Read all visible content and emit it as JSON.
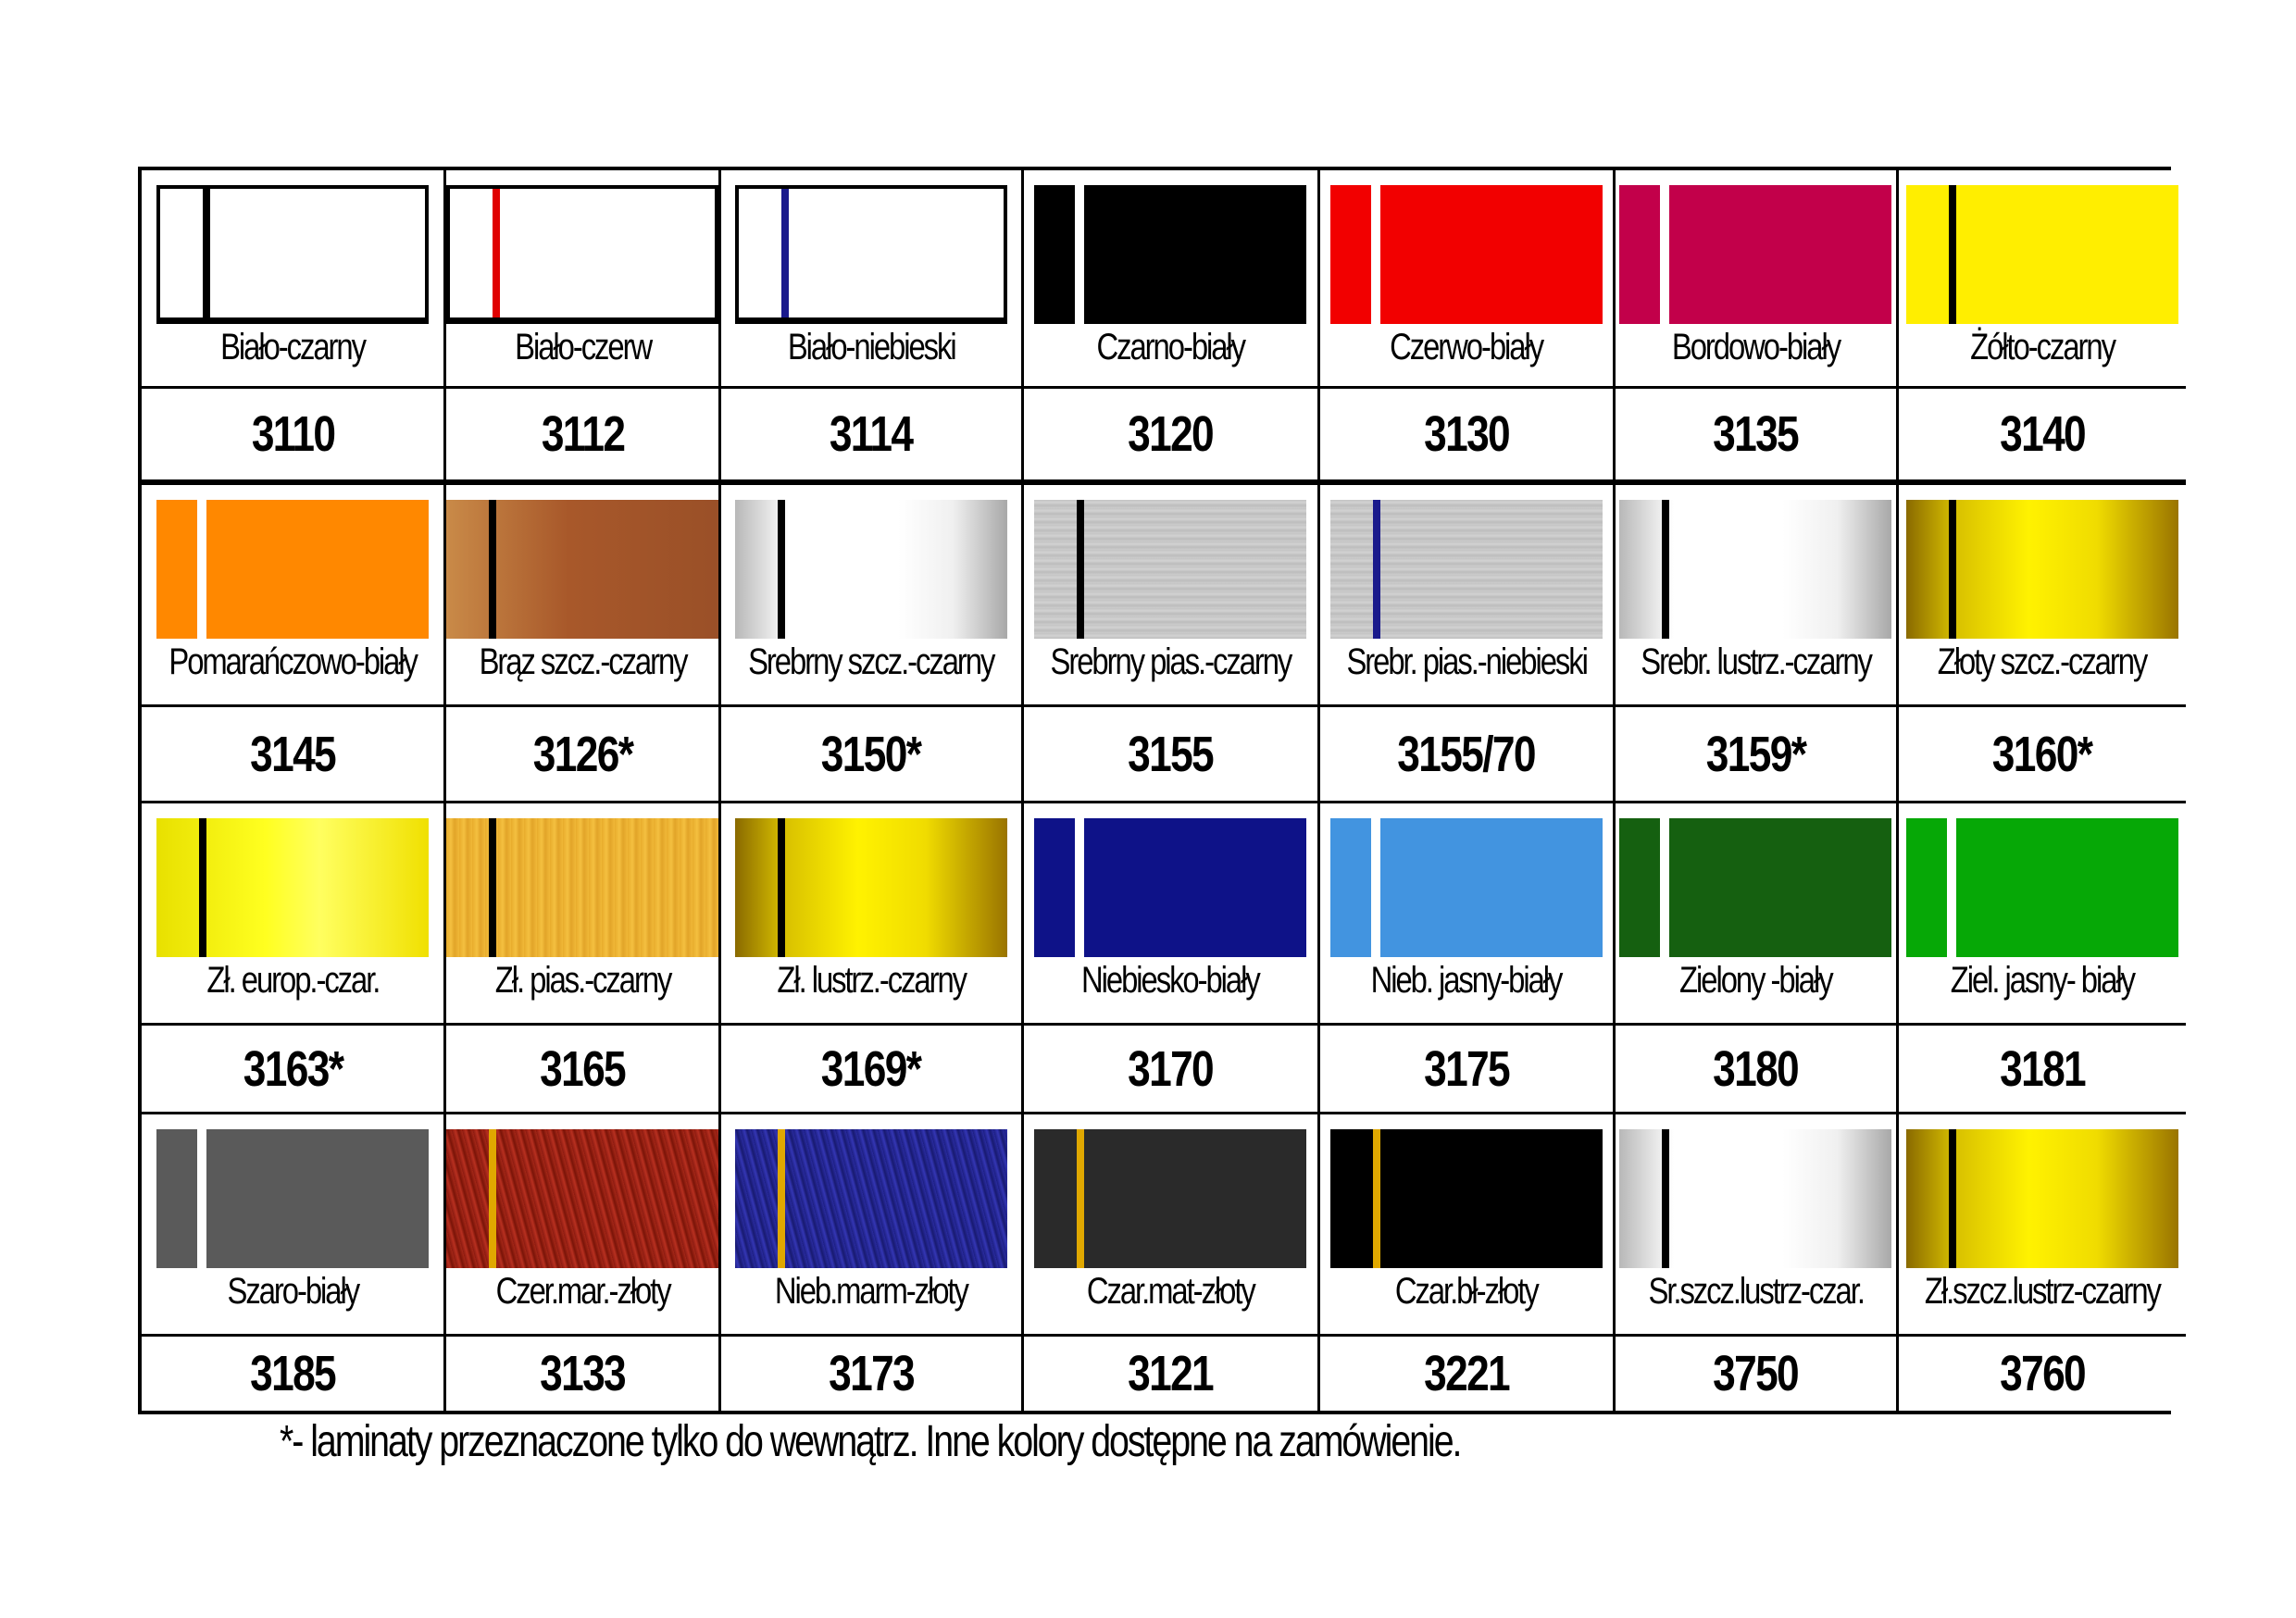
{
  "rows": [
    [
      {
        "label": "Biało-czarny",
        "code": "3110",
        "base": "#ffffff",
        "stripe": "#000000",
        "finish": "outline"
      },
      {
        "label": "Biało-czerw",
        "code": "3112",
        "base": "#ffffff",
        "stripe": "#e00000",
        "finish": "outline"
      },
      {
        "label": "Biało-niebieski",
        "code": "3114",
        "base": "#ffffff",
        "stripe": "#1a1a8c",
        "finish": "outline"
      },
      {
        "label": "Czarno-biały",
        "code": "3120",
        "base": "#000000",
        "stripe": "#ffffff",
        "finish": "solid"
      },
      {
        "label": "Czerwo-biały",
        "code": "3130",
        "base": "#f20000",
        "stripe": "#ffffff",
        "finish": "solid"
      },
      {
        "label": "Bordowo-biały",
        "code": "3135",
        "base": "#c2004a",
        "stripe": "#ffffff",
        "finish": "solid"
      },
      {
        "label": "Żółto-czarny",
        "code": "3140",
        "base": "#ffee00",
        "stripe": "#000000",
        "finish": "solid"
      }
    ],
    [
      {
        "label": "Pomarańczowo-biały",
        "code": "3145",
        "base": "#ff8800",
        "stripe": "#ffffff",
        "finish": "solid"
      },
      {
        "label": "Brąz szcz.-czarny",
        "code": "3126*",
        "base": "#a8582a",
        "stripe": "#000000",
        "finish": "bronze"
      },
      {
        "label": "Srebrny szcz.-czarny",
        "code": "3150*",
        "base": "#e8e8e8",
        "stripe": "#000000",
        "finish": "silver-mirror"
      },
      {
        "label": "Srebrny pias.-czarny",
        "code": "3155",
        "base": "#c8c8c8",
        "stripe": "#000000",
        "finish": "silver-brushed"
      },
      {
        "label": "Srebr. pias.-niebieski",
        "code": "3155/70",
        "base": "#c8c8c8",
        "stripe": "#1a1a8c",
        "finish": "silver-brushed"
      },
      {
        "label": "Srebr. lustrz.-czarny",
        "code": "3159*",
        "base": "#e8e8e8",
        "stripe": "#000000",
        "finish": "silver-mirror"
      },
      {
        "label": "Złoty szcz.-czarny",
        "code": "3160*",
        "base": "#d6b800",
        "stripe": "#000000",
        "finish": "gold-mirror"
      }
    ],
    [
      {
        "label": "Zł. europ.-czar.",
        "code": "3163*",
        "base": "#f4ec00",
        "stripe": "#000000",
        "finish": "gold-euro"
      },
      {
        "label": "Zł. pias.-czarny",
        "code": "3165",
        "base": "#eab030",
        "stripe": "#000000",
        "finish": "gold-brushed"
      },
      {
        "label": "Zł. lustrz.-czarny",
        "code": "3169*",
        "base": "#d6b800",
        "stripe": "#000000",
        "finish": "gold-mirror"
      },
      {
        "label": "Niebiesko-biały",
        "code": "3170",
        "base": "#0e1288",
        "stripe": "#ffffff",
        "finish": "solid"
      },
      {
        "label": "Nieb. jasny-biały",
        "code": "3175",
        "base": "#4294e0",
        "stripe": "#ffffff",
        "finish": "solid"
      },
      {
        "label": "Zielony -biały",
        "code": "3180",
        "base": "#156010",
        "stripe": "#ffffff",
        "finish": "solid"
      },
      {
        "label": "Ziel. jasny- biały",
        "code": "3181",
        "base": "#06a806",
        "stripe": "#ffffff",
        "finish": "solid"
      }
    ],
    [
      {
        "label": "Szaro-biały",
        "code": "3185",
        "base": "#5a5a5a",
        "stripe": "#ffffff",
        "finish": "solid"
      },
      {
        "label": "Czer.mar.-złoty",
        "code": "3133",
        "base": "#a02818",
        "stripe": "#e0a800",
        "finish": "marble-red"
      },
      {
        "label": "Nieb.marm-złoty",
        "code": "3173",
        "base": "#2a2ca0",
        "stripe": "#e0a800",
        "finish": "marble-blue"
      },
      {
        "label": "Czar.mat-złoty",
        "code": "3121",
        "base": "#2a2a2a",
        "stripe": "#e0a800",
        "finish": "solid"
      },
      {
        "label": "Czar.bł-złoty",
        "code": "3221",
        "base": "#000000",
        "stripe": "#e0a800",
        "finish": "solid"
      },
      {
        "label": "Sr.szcz.lustrz-czar.",
        "code": "3750",
        "base": "#e8e8e8",
        "stripe": "#000000",
        "finish": "silver-mirror"
      },
      {
        "label": "Zł.szcz.lustrz-czarny",
        "code": "3760",
        "base": "#d6b800",
        "stripe": "#000000",
        "finish": "gold-mirror"
      }
    ]
  ],
  "footnote": "*- laminaty przeznaczone tylko do wewnątrz. Inne kolory dostępne  na zamówienie."
}
